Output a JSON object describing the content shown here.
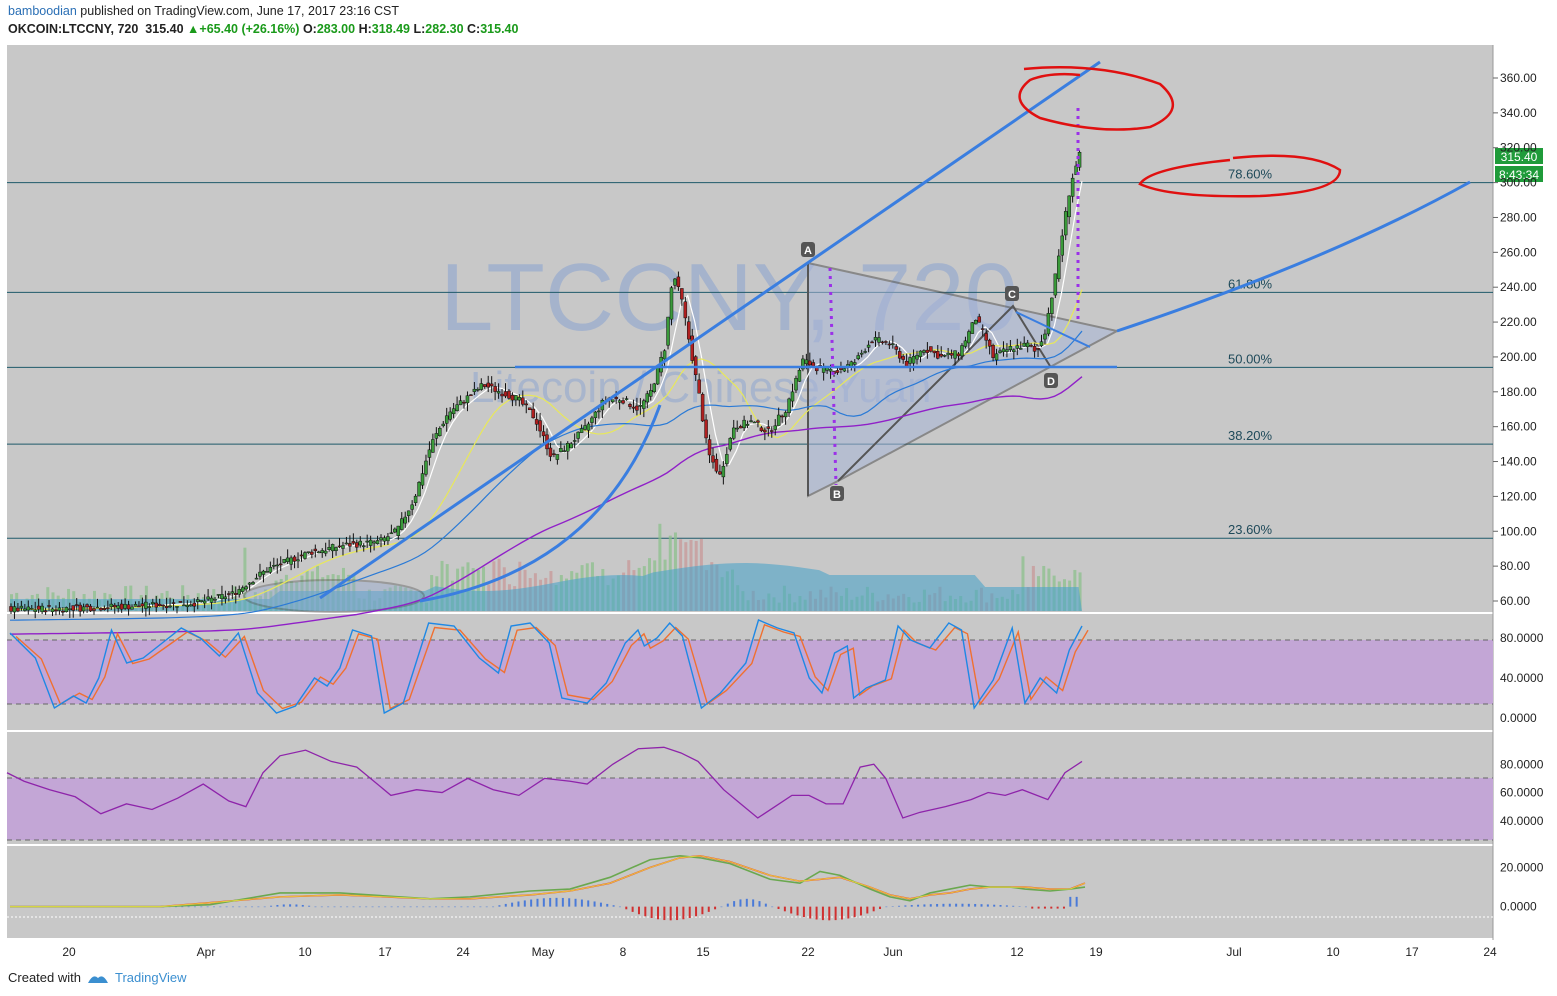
{
  "header": {
    "author": "bamboodian",
    "published_text": "published on TradingView.com, June 17, 2017 23:16 CST",
    "symbol": "OKCOIN:LTCCNY, 720",
    "last": "315.40",
    "change": "+65.40 (+26.16%)",
    "open_label": "O:",
    "open": "283.00",
    "high_label": "H:",
    "high": "318.49",
    "low_label": "L:",
    "low": "282.30",
    "close_label": "C:",
    "close": "315.40"
  },
  "watermark": {
    "line1": "LTCCNY, 720",
    "line2": "Litecoin / Chinese Yuan"
  },
  "footer": {
    "created_with": "Created with",
    "brand": "TradingView"
  },
  "colors": {
    "panel_bg": "#c8c8c8",
    "osc_band": "#c3a6d6",
    "up": "#3a9a3a",
    "down": "#b02020",
    "trend_line": "#3a7ee0",
    "annotation": "#e01010"
  },
  "chart_data": {
    "type": "candlestick",
    "price_axis": {
      "ylim": [
        50,
        370
      ],
      "ticks": [
        "360.00",
        "340.00",
        "320.00",
        "300.00",
        "280.00",
        "260.00",
        "240.00",
        "220.00",
        "200.00",
        "180.00",
        "160.00",
        "140.00",
        "120.00",
        "100.00",
        "80.00",
        "60.00"
      ]
    },
    "last_price_label": "315.40",
    "countdown_label": "8:43:34",
    "x_tick_labels": [
      "20",
      "Apr",
      "10",
      "17",
      "24",
      "May",
      "8",
      "15",
      "22",
      "Jun",
      "12",
      "19",
      "Jul",
      "10",
      "17",
      "24"
    ],
    "fib_levels": [
      {
        "label": "78.60%",
        "price": 300
      },
      {
        "label": "61.80%",
        "price": 237
      },
      {
        "label": "50.00%",
        "price": 194
      },
      {
        "label": "38.20%",
        "price": 150
      },
      {
        "label": "23.60%",
        "price": 96
      }
    ],
    "pattern_points": [
      "A",
      "B",
      "C",
      "D"
    ],
    "close_path": [
      [
        0,
        55
      ],
      [
        40,
        56
      ],
      [
        70,
        57
      ],
      [
        110,
        59
      ],
      [
        130,
        64
      ],
      [
        150,
        78
      ],
      [
        175,
        88
      ],
      [
        195,
        92
      ],
      [
        215,
        94
      ],
      [
        225,
        100
      ],
      [
        235,
        118
      ],
      [
        245,
        150
      ],
      [
        255,
        168
      ],
      [
        265,
        176
      ],
      [
        275,
        184
      ],
      [
        285,
        180
      ],
      [
        295,
        176
      ],
      [
        305,
        165
      ],
      [
        315,
        142
      ],
      [
        325,
        150
      ],
      [
        335,
        160
      ],
      [
        345,
        175
      ],
      [
        355,
        176
      ],
      [
        365,
        170
      ],
      [
        372,
        180
      ],
      [
        380,
        205
      ],
      [
        385,
        248
      ],
      [
        390,
        232
      ],
      [
        395,
        205
      ],
      [
        400,
        178
      ],
      [
        405,
        145
      ],
      [
        412,
        132
      ],
      [
        420,
        160
      ],
      [
        430,
        163
      ],
      [
        440,
        157
      ],
      [
        450,
        170
      ],
      [
        460,
        198
      ],
      [
        470,
        193
      ],
      [
        480,
        192
      ],
      [
        490,
        197
      ],
      [
        500,
        210
      ],
      [
        510,
        208
      ],
      [
        520,
        196
      ],
      [
        530,
        205
      ],
      [
        540,
        200
      ],
      [
        550,
        202
      ],
      [
        560,
        222
      ],
      [
        565,
        212
      ],
      [
        570,
        200
      ],
      [
        580,
        205
      ],
      [
        590,
        207
      ],
      [
        595,
        202
      ],
      [
        600,
        215
      ],
      [
        605,
        240
      ],
      [
        610,
        270
      ],
      [
        615,
        300
      ],
      [
        620,
        315.4
      ]
    ],
    "stoch": {
      "axis_ticks": [
        "80.0000",
        "40.0000",
        "0.0000"
      ],
      "ylim": [
        -8,
        100
      ],
      "band": [
        20,
        80
      ]
    },
    "rsi": {
      "axis_ticks": [
        "80.0000",
        "60.0000",
        "40.0000"
      ],
      "ylim": [
        25,
        100
      ],
      "band": [
        30,
        70
      ],
      "values": [
        [
          0,
          74
        ],
        [
          10,
          68
        ],
        [
          25,
          62
        ],
        [
          40,
          57
        ],
        [
          55,
          45
        ],
        [
          70,
          52
        ],
        [
          85,
          48
        ],
        [
          100,
          56
        ],
        [
          115,
          66
        ],
        [
          130,
          54
        ],
        [
          140,
          50
        ],
        [
          150,
          74
        ],
        [
          160,
          86
        ],
        [
          175,
          90
        ],
        [
          190,
          82
        ],
        [
          205,
          78
        ],
        [
          225,
          58
        ],
        [
          240,
          62
        ],
        [
          255,
          60
        ],
        [
          270,
          70
        ],
        [
          285,
          62
        ],
        [
          300,
          58
        ],
        [
          315,
          70
        ],
        [
          330,
          68
        ],
        [
          340,
          66
        ],
        [
          355,
          80
        ],
        [
          370,
          91
        ],
        [
          385,
          92
        ],
        [
          395,
          88
        ],
        [
          405,
          82
        ],
        [
          420,
          62
        ],
        [
          430,
          52
        ],
        [
          440,
          42
        ],
        [
          450,
          50
        ],
        [
          460,
          58
        ],
        [
          470,
          58
        ],
        [
          480,
          52
        ],
        [
          490,
          52
        ],
        [
          500,
          78
        ],
        [
          508,
          80
        ],
        [
          515,
          70
        ],
        [
          525,
          42
        ],
        [
          535,
          46
        ],
        [
          550,
          50
        ],
        [
          565,
          55
        ],
        [
          575,
          60
        ],
        [
          585,
          58
        ],
        [
          595,
          62
        ],
        [
          610,
          55
        ],
        [
          620,
          74
        ],
        [
          630,
          82
        ]
      ]
    },
    "macd": {
      "axis_ticks": [
        "20.0000",
        "0.0000"
      ],
      "ylim": [
        -14,
        30
      ]
    }
  }
}
